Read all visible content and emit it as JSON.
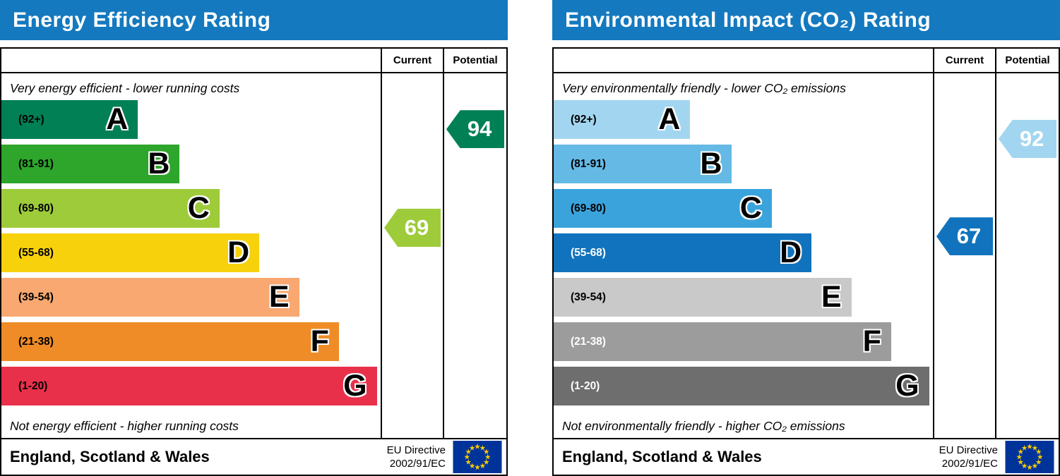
{
  "colors": {
    "header_blue": "#1479bf",
    "border": "#000000",
    "eu_flag_blue": "#003399",
    "eu_star_yellow": "#ffcc00"
  },
  "chart_data": [
    {
      "type": "bar",
      "title": "Energy Efficiency Rating",
      "columns": {
        "current": "Current",
        "potential": "Potential"
      },
      "top_note": "Very energy efficient - lower running costs",
      "bottom_note": "Not energy efficient - higher running costs",
      "bands": [
        {
          "letter": "A",
          "range_label": "(92+)",
          "min": 92,
          "max": 100,
          "color": "#008054",
          "label_color": "#000000",
          "width_pct": 36
        },
        {
          "letter": "B",
          "range_label": "(81-91)",
          "min": 81,
          "max": 91,
          "color": "#2ea52b",
          "label_color": "#000000",
          "width_pct": 47
        },
        {
          "letter": "C",
          "range_label": "(69-80)",
          "min": 69,
          "max": 80,
          "color": "#9ecb3a",
          "label_color": "#000000",
          "width_pct": 57.5
        },
        {
          "letter": "D",
          "range_label": "(55-68)",
          "min": 55,
          "max": 68,
          "color": "#f7d10c",
          "label_color": "#000000",
          "width_pct": 68
        },
        {
          "letter": "E",
          "range_label": "(39-54)",
          "min": 39,
          "max": 54,
          "color": "#f8a870",
          "label_color": "#000000",
          "width_pct": 78.5
        },
        {
          "letter": "F",
          "range_label": "(21-38)",
          "min": 21,
          "max": 38,
          "color": "#ef8c27",
          "label_color": "#000000",
          "width_pct": 89
        },
        {
          "letter": "G",
          "range_label": "(1-20)",
          "min": 1,
          "max": 20,
          "color": "#e9304a",
          "label_color": "#000000",
          "width_pct": 99
        }
      ],
      "current": {
        "value": 69,
        "band": "C",
        "color": "#9ecb3a"
      },
      "potential": {
        "value": 94,
        "band": "A",
        "color": "#008054"
      },
      "footer": {
        "region": "England, Scotland & Wales",
        "directive_line1": "EU Directive",
        "directive_line2": "2002/91/EC"
      }
    },
    {
      "type": "bar",
      "title": "Environmental Impact (CO₂) Rating",
      "columns": {
        "current": "Current",
        "potential": "Potential"
      },
      "top_note": "Very environmentally friendly - lower CO₂ emissions",
      "bottom_note": "Not environmentally friendly - higher CO₂ emissions",
      "bands": [
        {
          "letter": "A",
          "range_label": "(92+)",
          "min": 92,
          "max": 100,
          "color": "#a2d6f0",
          "label_color": "#000000",
          "width_pct": 36
        },
        {
          "letter": "B",
          "range_label": "(81-91)",
          "min": 81,
          "max": 91,
          "color": "#65b9e5",
          "label_color": "#000000",
          "width_pct": 47
        },
        {
          "letter": "C",
          "range_label": "(69-80)",
          "min": 69,
          "max": 80,
          "color": "#3aa3dc",
          "label_color": "#000000",
          "width_pct": 57.5
        },
        {
          "letter": "D",
          "range_label": "(55-68)",
          "min": 55,
          "max": 68,
          "color": "#1173bd",
          "label_color": "#ffffff",
          "width_pct": 68
        },
        {
          "letter": "E",
          "range_label": "(39-54)",
          "min": 39,
          "max": 54,
          "color": "#c9c9c9",
          "label_color": "#000000",
          "width_pct": 78.5
        },
        {
          "letter": "F",
          "range_label": "(21-38)",
          "min": 21,
          "max": 38,
          "color": "#9c9c9c",
          "label_color": "#ffffff",
          "width_pct": 89
        },
        {
          "letter": "G",
          "range_label": "(1-20)",
          "min": 1,
          "max": 20,
          "color": "#6e6e6e",
          "label_color": "#ffffff",
          "width_pct": 99
        }
      ],
      "current": {
        "value": 67,
        "band": "D",
        "color": "#1173bd"
      },
      "potential": {
        "value": 92,
        "band": "A",
        "color": "#a2d6f0"
      },
      "footer": {
        "region": "England, Scotland & Wales",
        "directive_line1": "EU Directive",
        "directive_line2": "2002/91/EC"
      }
    }
  ]
}
